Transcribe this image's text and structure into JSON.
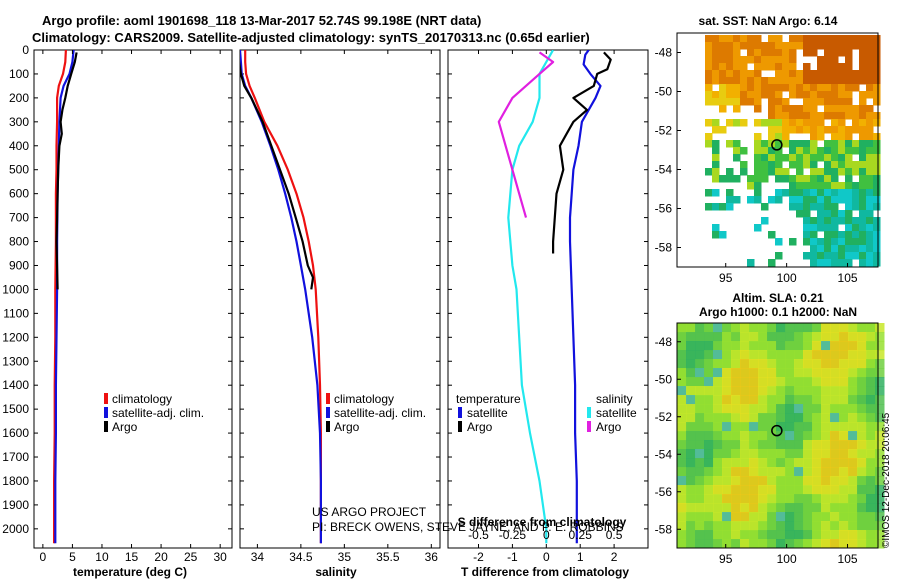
{
  "title": {
    "line1": "Argo profile: aoml 1901698_118 13-Mar-2017 52.74S 99.198E (NRT data)",
    "line2": "Climatology: CARS2009. Satellite-adjusted climatology: synTS_20170313.nc (0.65d earlier)"
  },
  "colors": {
    "climatology": "#ee1111",
    "satellite": "#1111dd",
    "argo": "#000000",
    "sal_sat_diff": "#22e8ee",
    "sal_argo_diff": "#e020e0"
  },
  "depth_axis": {
    "ticks": [
      "0",
      "100",
      "200",
      "300",
      "400",
      "500",
      "600",
      "700",
      "800",
      "900",
      "1000",
      "1100",
      "1200",
      "1300",
      "1400",
      "1500",
      "1600",
      "1700",
      "1800",
      "1900",
      "2000"
    ]
  },
  "legend_labels": {
    "climatology": "climatology",
    "satellite_clim": "satellite-adj. clim.",
    "argo": "Argo"
  },
  "chart_data": [
    {
      "type": "line",
      "id": "temperature",
      "xlabel": "temperature (deg C)",
      "xlim": [
        -1.5,
        32
      ],
      "ylim": [
        2080,
        0
      ],
      "xticks": [
        "0",
        "5",
        "10",
        "15",
        "20",
        "25",
        "30"
      ],
      "series": [
        {
          "name": "climatology",
          "color": "#ee1111",
          "x": [
            3.9,
            3.8,
            3.4,
            2.7,
            2.4,
            2.4,
            2.3,
            2.3,
            2.2,
            2.2,
            2.1,
            2.1,
            2.0,
            2.0,
            1.9,
            1.9,
            1.9
          ],
          "y": [
            0,
            50,
            100,
            150,
            200,
            300,
            400,
            500,
            600,
            800,
            1000,
            1200,
            1400,
            1600,
            1800,
            2000,
            2060
          ]
        },
        {
          "name": "satellite-adj. clim.",
          "color": "#1111dd",
          "x": [
            5.2,
            5.0,
            4.5,
            3.5,
            3.0,
            2.8,
            2.7,
            2.6,
            2.5,
            2.4,
            2.4,
            2.3,
            2.2,
            2.2,
            2.1,
            2.1,
            2.1
          ],
          "y": [
            0,
            50,
            100,
            150,
            200,
            300,
            400,
            500,
            600,
            800,
            1000,
            1200,
            1400,
            1600,
            1800,
            2000,
            2060
          ]
        },
        {
          "name": "Argo",
          "color": "#000000",
          "x": [
            5.7,
            5.4,
            4.8,
            4.2,
            3.8,
            3.3,
            3.0,
            3.2,
            2.8,
            2.6,
            2.5,
            2.4,
            2.3,
            2.5
          ],
          "y": [
            10,
            50,
            100,
            150,
            200,
            250,
            300,
            350,
            400,
            500,
            600,
            700,
            800,
            1000
          ]
        }
      ],
      "legend": [
        "climatology",
        "satellite-adj. clim.",
        "Argo"
      ]
    },
    {
      "type": "line",
      "id": "salinity",
      "xlabel": "salinity",
      "xlim": [
        33.8,
        36.1
      ],
      "ylim": [
        2080,
        0
      ],
      "xticks": [
        "34",
        "34.5",
        "35",
        "35.5",
        "36"
      ],
      "series": [
        {
          "name": "climatology",
          "color": "#ee1111",
          "x": [
            33.86,
            33.86,
            33.87,
            33.91,
            33.97,
            34.08,
            34.23,
            34.35,
            34.45,
            34.53,
            34.59,
            34.64,
            34.67,
            34.7,
            34.72,
            34.73,
            34.73,
            34.73
          ],
          "y": [
            0,
            50,
            100,
            150,
            200,
            300,
            400,
            500,
            600,
            700,
            800,
            900,
            1000,
            1200,
            1400,
            1600,
            1800,
            2060
          ]
        },
        {
          "name": "satellite-adj. clim.",
          "color": "#1111dd",
          "x": [
            33.8,
            33.81,
            33.82,
            33.86,
            33.93,
            34.05,
            34.15,
            34.24,
            34.32,
            34.39,
            34.45,
            34.5,
            34.55,
            34.63,
            34.69,
            34.72,
            34.73,
            34.73
          ],
          "y": [
            0,
            50,
            100,
            150,
            200,
            300,
            400,
            500,
            600,
            700,
            800,
            900,
            1000,
            1200,
            1400,
            1600,
            1800,
            2060
          ]
        },
        {
          "name": "Argo",
          "color": "#000000",
          "x": [
            33.78,
            33.79,
            33.81,
            33.85,
            33.93,
            34.06,
            34.16,
            34.26,
            34.36,
            34.44,
            34.52,
            34.58,
            34.64,
            34.62
          ],
          "y": [
            10,
            50,
            100,
            150,
            200,
            300,
            400,
            500,
            600,
            700,
            800,
            900,
            950,
            1000
          ]
        }
      ],
      "legend": [
        "climatology",
        "satellite-adj. clim.",
        "Argo"
      ],
      "annotations": [
        "US ARGO PROJECT",
        "PI: BRECK OWENS, STEVE JAYNE, AND P. E. ROBBINS"
      ]
    },
    {
      "type": "line",
      "id": "difference",
      "xlabel": "T difference from climatology",
      "xlim": [
        -2.9,
        3.0
      ],
      "ylim": [
        2080,
        0
      ],
      "xticks": [
        "-2",
        "-1",
        "0",
        "1",
        "2"
      ],
      "secondary_xlabel": "S difference from climatology",
      "secondary_xticks": [
        "-0.5",
        "-0.25",
        "0",
        "0.25",
        "0.5"
      ],
      "series": [
        {
          "name": "temperature satellite",
          "color": "#1111dd",
          "x": [
            1.25,
            1.15,
            1.1,
            1.3,
            1.6,
            1.45,
            1.05,
            0.95,
            0.8,
            0.75,
            0.7,
            0.7,
            0.75,
            0.8,
            0.85,
            0.85,
            0.9,
            0.9,
            0.9
          ],
          "y": [
            0,
            20,
            60,
            100,
            150,
            200,
            300,
            400,
            500,
            600,
            700,
            800,
            1000,
            1200,
            1400,
            1600,
            1800,
            2000,
            2060
          ]
        },
        {
          "name": "temperature Argo",
          "color": "#000000",
          "x": [
            1.7,
            1.9,
            1.8,
            1.5,
            1.4,
            0.8,
            1.2,
            0.8,
            0.6,
            0.4,
            0.5,
            0.3,
            0.25,
            0.2,
            0.2
          ],
          "y": [
            10,
            40,
            80,
            100,
            150,
            200,
            250,
            300,
            350,
            400,
            500,
            600,
            700,
            800,
            850
          ]
        },
        {
          "name": "salinity satellite",
          "color": "#22e8ee",
          "x": [
            0.05,
            -0.05,
            -0.05,
            -0.1,
            -0.2,
            -0.25,
            -0.28,
            -0.25,
            -0.22,
            -0.2,
            -0.18,
            -0.12,
            -0.05,
            0.0,
            0.0
          ],
          "y": [
            0,
            100,
            200,
            300,
            400,
            500,
            700,
            900,
            1000,
            1200,
            1400,
            1600,
            1800,
            2000,
            2060
          ]
        },
        {
          "name": "salinity Argo",
          "color": "#e020e0",
          "x": [
            -0.05,
            0.05,
            -0.05,
            -0.25,
            -0.35,
            -0.3,
            -0.25,
            -0.2,
            -0.15
          ],
          "y": [
            10,
            50,
            100,
            200,
            300,
            400,
            500,
            600,
            700
          ]
        }
      ],
      "legend_headers": [
        "temperature",
        "salinity"
      ],
      "legend": [
        "satellite",
        "Argo",
        "satellite",
        "Argo"
      ]
    },
    {
      "type": "heatmap",
      "id": "sst_map",
      "title": "sat. SST: NaN Argo: 6.14",
      "xticks": [
        "95",
        "100",
        "105"
      ],
      "yticks": [
        "-48",
        "-50",
        "-52",
        "-54",
        "-56",
        "-58"
      ],
      "xlim": [
        91,
        107.5
      ],
      "ylim": [
        -59,
        -47
      ],
      "marker": {
        "lon": 99.198,
        "lat": -52.74
      }
    },
    {
      "type": "heatmap",
      "id": "sla_map",
      "title": "Altim. SLA: 0.21",
      "subtitle": "Argo h1000: 0.1 h2000: NaN",
      "xticks": [
        "95",
        "100",
        "105"
      ],
      "yticks": [
        "-48",
        "-50",
        "-52",
        "-54",
        "-56",
        "-58"
      ],
      "xlim": [
        91,
        107.5
      ],
      "ylim": [
        -59,
        -47
      ],
      "marker": {
        "lon": 99.198,
        "lat": -52.74
      }
    }
  ],
  "footer": "©IMOS 12-Dec-2018 20:06:45"
}
